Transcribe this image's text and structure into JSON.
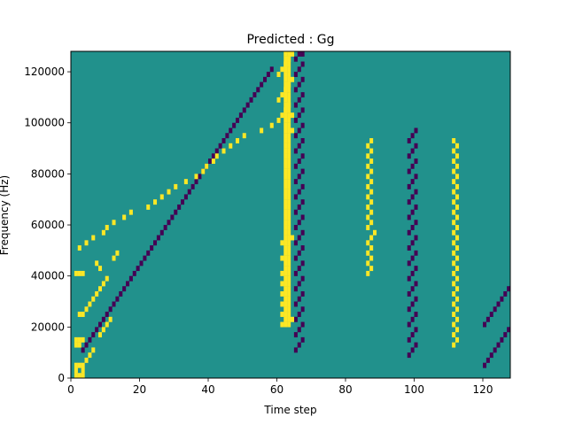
{
  "chart_data": {
    "type": "heatmap",
    "title": "Predicted : Gg",
    "xlabel": "Time step",
    "ylabel": "Frequency (Hz)",
    "xlim": [
      0,
      128
    ],
    "ylim": [
      0,
      128000
    ],
    "x_ticks": [
      0,
      20,
      40,
      60,
      80,
      100,
      120
    ],
    "x_tick_labels": [
      "0",
      "20",
      "40",
      "60",
      "80",
      "100",
      "120"
    ],
    "y_ticks": [
      0,
      20000,
      40000,
      60000,
      80000,
      100000,
      120000
    ],
    "y_tick_labels": [
      "0",
      "20000",
      "40000",
      "60000",
      "80000",
      "100000",
      "120000"
    ],
    "colormap": "viridis",
    "levels": {
      "background": "#21918c",
      "low": "#440154",
      "high": "#fde725"
    },
    "grid": false,
    "rows": 64,
    "cols": 128,
    "cells_high": [
      [
        1,
        0
      ],
      [
        2,
        0
      ],
      [
        3,
        0
      ],
      [
        1,
        1
      ],
      [
        3,
        1
      ],
      [
        1,
        2
      ],
      [
        2,
        2
      ],
      [
        3,
        2
      ],
      [
        4,
        3
      ],
      [
        5,
        4
      ],
      [
        6,
        5
      ],
      [
        1,
        6
      ],
      [
        2,
        6
      ],
      [
        1,
        7
      ],
      [
        2,
        7
      ],
      [
        3,
        7
      ],
      [
        8,
        8
      ],
      [
        9,
        9
      ],
      [
        10,
        10
      ],
      [
        11,
        11
      ],
      [
        2,
        12
      ],
      [
        3,
        12
      ],
      [
        4,
        13
      ],
      [
        5,
        14
      ],
      [
        6,
        15
      ],
      [
        7,
        16
      ],
      [
        8,
        17
      ],
      [
        9,
        18
      ],
      [
        10,
        19
      ],
      [
        1,
        20
      ],
      [
        2,
        20
      ],
      [
        3,
        20
      ],
      [
        8,
        21
      ],
      [
        7,
        22
      ],
      [
        12,
        23
      ],
      [
        13,
        24
      ],
      [
        2,
        25
      ],
      [
        4,
        26
      ],
      [
        6,
        27
      ],
      [
        9,
        28
      ],
      [
        10,
        29
      ],
      [
        12,
        30
      ],
      [
        15,
        31
      ],
      [
        17,
        32
      ],
      [
        22,
        33
      ],
      [
        24,
        34
      ],
      [
        26,
        35
      ],
      [
        28,
        36
      ],
      [
        30,
        37
      ],
      [
        33,
        38
      ],
      [
        36,
        39
      ],
      [
        38,
        40
      ],
      [
        39,
        41
      ],
      [
        41,
        42
      ],
      [
        42,
        43
      ],
      [
        44,
        44
      ],
      [
        46,
        45
      ],
      [
        48,
        46
      ],
      [
        50,
        47
      ],
      [
        55,
        48
      ],
      [
        58,
        49
      ],
      [
        60,
        50
      ],
      [
        61,
        51
      ],
      [
        62,
        52
      ],
      [
        63,
        53
      ],
      [
        60,
        54
      ],
      [
        61,
        55
      ],
      [
        62,
        56
      ],
      [
        63,
        57
      ],
      [
        64,
        58
      ],
      [
        60,
        59
      ],
      [
        61,
        60
      ],
      [
        62,
        61
      ],
      [
        63,
        62
      ],
      [
        64,
        63
      ],
      [
        61,
        10
      ],
      [
        62,
        10
      ],
      [
        63,
        10
      ],
      [
        62,
        11
      ],
      [
        63,
        11
      ],
      [
        64,
        11
      ],
      [
        61,
        12
      ],
      [
        62,
        12
      ],
      [
        63,
        12
      ],
      [
        62,
        13
      ],
      [
        63,
        13
      ],
      [
        61,
        14
      ],
      [
        62,
        14
      ],
      [
        63,
        14
      ],
      [
        62,
        15
      ],
      [
        63,
        15
      ],
      [
        61,
        16
      ],
      [
        62,
        16
      ],
      [
        63,
        16
      ],
      [
        62,
        17
      ],
      [
        63,
        17
      ],
      [
        61,
        18
      ],
      [
        62,
        18
      ],
      [
        63,
        18
      ],
      [
        62,
        19
      ],
      [
        63,
        19
      ],
      [
        61,
        20
      ],
      [
        62,
        20
      ],
      [
        63,
        20
      ],
      [
        62,
        21
      ],
      [
        63,
        21
      ],
      [
        62,
        22
      ],
      [
        63,
        22
      ],
      [
        61,
        23
      ],
      [
        62,
        23
      ],
      [
        63,
        23
      ],
      [
        62,
        24
      ],
      [
        63,
        24
      ],
      [
        62,
        25
      ],
      [
        63,
        25
      ],
      [
        61,
        26
      ],
      [
        62,
        26
      ],
      [
        63,
        26
      ],
      [
        62,
        27
      ],
      [
        63,
        27
      ],
      [
        64,
        27
      ],
      [
        62,
        28
      ],
      [
        63,
        28
      ],
      [
        62,
        29
      ],
      [
        63,
        29
      ],
      [
        62,
        30
      ],
      [
        63,
        30
      ],
      [
        62,
        31
      ],
      [
        63,
        31
      ],
      [
        62,
        32
      ],
      [
        63,
        32
      ],
      [
        62,
        33
      ],
      [
        63,
        33
      ],
      [
        62,
        34
      ],
      [
        63,
        34
      ],
      [
        62,
        35
      ],
      [
        63,
        35
      ],
      [
        62,
        36
      ],
      [
        63,
        36
      ],
      [
        62,
        37
      ],
      [
        63,
        37
      ],
      [
        62,
        38
      ],
      [
        63,
        38
      ],
      [
        62,
        39
      ],
      [
        63,
        39
      ],
      [
        62,
        40
      ],
      [
        63,
        40
      ],
      [
        62,
        41
      ],
      [
        63,
        41
      ],
      [
        62,
        42
      ],
      [
        63,
        42
      ],
      [
        62,
        43
      ],
      [
        63,
        43
      ],
      [
        62,
        44
      ],
      [
        63,
        44
      ],
      [
        62,
        45
      ],
      [
        63,
        45
      ],
      [
        62,
        46
      ],
      [
        63,
        46
      ],
      [
        62,
        47
      ],
      [
        63,
        47
      ],
      [
        62,
        48
      ],
      [
        63,
        48
      ],
      [
        64,
        48
      ],
      [
        62,
        49
      ],
      [
        63,
        49
      ],
      [
        62,
        50
      ],
      [
        63,
        50
      ],
      [
        62,
        51
      ],
      [
        63,
        51
      ],
      [
        64,
        51
      ],
      [
        62,
        52
      ],
      [
        63,
        52
      ],
      [
        62,
        53
      ],
      [
        63,
        53
      ],
      [
        62,
        54
      ],
      [
        63,
        54
      ],
      [
        62,
        55
      ],
      [
        63,
        55
      ],
      [
        62,
        56
      ],
      [
        63,
        56
      ],
      [
        62,
        57
      ],
      [
        63,
        57
      ],
      [
        62,
        58
      ],
      [
        63,
        58
      ],
      [
        62,
        59
      ],
      [
        63,
        59
      ],
      [
        62,
        60
      ],
      [
        63,
        60
      ],
      [
        62,
        61
      ],
      [
        63,
        61
      ],
      [
        62,
        62
      ],
      [
        63,
        62
      ],
      [
        62,
        63
      ],
      [
        63,
        63
      ],
      [
        86,
        20
      ],
      [
        87,
        21
      ],
      [
        86,
        22
      ],
      [
        87,
        23
      ],
      [
        86,
        24
      ],
      [
        87,
        25
      ],
      [
        86,
        26
      ],
      [
        87,
        27
      ],
      [
        88,
        28
      ],
      [
        86,
        29
      ],
      [
        87,
        30
      ],
      [
        86,
        31
      ],
      [
        87,
        32
      ],
      [
        86,
        33
      ],
      [
        87,
        34
      ],
      [
        86,
        35
      ],
      [
        87,
        36
      ],
      [
        86,
        37
      ],
      [
        87,
        38
      ],
      [
        86,
        39
      ],
      [
        87,
        40
      ],
      [
        86,
        41
      ],
      [
        87,
        42
      ],
      [
        86,
        43
      ],
      [
        87,
        44
      ],
      [
        86,
        45
      ],
      [
        87,
        46
      ],
      [
        111,
        6
      ],
      [
        112,
        7
      ],
      [
        111,
        8
      ],
      [
        112,
        9
      ],
      [
        111,
        10
      ],
      [
        112,
        11
      ],
      [
        111,
        12
      ],
      [
        112,
        13
      ],
      [
        111,
        14
      ],
      [
        112,
        15
      ],
      [
        111,
        16
      ],
      [
        112,
        17
      ],
      [
        111,
        18
      ],
      [
        112,
        19
      ],
      [
        111,
        20
      ],
      [
        112,
        21
      ],
      [
        111,
        22
      ],
      [
        112,
        23
      ],
      [
        111,
        24
      ],
      [
        112,
        25
      ],
      [
        111,
        26
      ],
      [
        112,
        27
      ],
      [
        111,
        28
      ],
      [
        112,
        29
      ],
      [
        111,
        30
      ],
      [
        112,
        31
      ],
      [
        111,
        32
      ],
      [
        112,
        33
      ],
      [
        111,
        34
      ],
      [
        112,
        35
      ],
      [
        111,
        36
      ],
      [
        112,
        37
      ],
      [
        111,
        38
      ],
      [
        112,
        39
      ],
      [
        111,
        40
      ],
      [
        112,
        41
      ],
      [
        111,
        42
      ],
      [
        112,
        43
      ],
      [
        111,
        44
      ],
      [
        112,
        45
      ],
      [
        111,
        46
      ]
    ],
    "cells_low": [
      [
        3,
        5
      ],
      [
        4,
        6
      ],
      [
        5,
        7
      ],
      [
        6,
        8
      ],
      [
        7,
        9
      ],
      [
        8,
        10
      ],
      [
        9,
        11
      ],
      [
        10,
        12
      ],
      [
        11,
        13
      ],
      [
        12,
        14
      ],
      [
        13,
        15
      ],
      [
        14,
        16
      ],
      [
        15,
        17
      ],
      [
        16,
        18
      ],
      [
        17,
        19
      ],
      [
        18,
        20
      ],
      [
        19,
        21
      ],
      [
        20,
        22
      ],
      [
        21,
        23
      ],
      [
        22,
        24
      ],
      [
        23,
        25
      ],
      [
        24,
        26
      ],
      [
        25,
        27
      ],
      [
        26,
        28
      ],
      [
        27,
        29
      ],
      [
        28,
        30
      ],
      [
        29,
        31
      ],
      [
        30,
        32
      ],
      [
        31,
        33
      ],
      [
        32,
        34
      ],
      [
        33,
        35
      ],
      [
        34,
        36
      ],
      [
        35,
        37
      ],
      [
        36,
        38
      ],
      [
        37,
        39
      ],
      [
        38,
        40
      ],
      [
        39,
        41
      ],
      [
        40,
        42
      ],
      [
        41,
        43
      ],
      [
        42,
        44
      ],
      [
        43,
        45
      ],
      [
        44,
        46
      ],
      [
        45,
        47
      ],
      [
        46,
        48
      ],
      [
        47,
        49
      ],
      [
        48,
        50
      ],
      [
        49,
        51
      ],
      [
        50,
        52
      ],
      [
        51,
        53
      ],
      [
        52,
        54
      ],
      [
        53,
        55
      ],
      [
        54,
        56
      ],
      [
        55,
        57
      ],
      [
        56,
        58
      ],
      [
        57,
        59
      ],
      [
        58,
        60
      ],
      [
        65,
        5
      ],
      [
        66,
        6
      ],
      [
        67,
        7
      ],
      [
        65,
        8
      ],
      [
        66,
        9
      ],
      [
        67,
        10
      ],
      [
        65,
        11
      ],
      [
        66,
        12
      ],
      [
        67,
        13
      ],
      [
        65,
        14
      ],
      [
        66,
        15
      ],
      [
        67,
        16
      ],
      [
        65,
        17
      ],
      [
        66,
        18
      ],
      [
        67,
        19
      ],
      [
        65,
        20
      ],
      [
        66,
        21
      ],
      [
        67,
        22
      ],
      [
        65,
        23
      ],
      [
        66,
        24
      ],
      [
        67,
        25
      ],
      [
        65,
        26
      ],
      [
        66,
        27
      ],
      [
        67,
        28
      ],
      [
        65,
        29
      ],
      [
        66,
        30
      ],
      [
        67,
        31
      ],
      [
        65,
        32
      ],
      [
        66,
        33
      ],
      [
        67,
        34
      ],
      [
        65,
        35
      ],
      [
        66,
        36
      ],
      [
        67,
        37
      ],
      [
        65,
        38
      ],
      [
        66,
        39
      ],
      [
        67,
        40
      ],
      [
        65,
        41
      ],
      [
        66,
        42
      ],
      [
        67,
        43
      ],
      [
        65,
        44
      ],
      [
        66,
        45
      ],
      [
        67,
        46
      ],
      [
        65,
        47
      ],
      [
        66,
        48
      ],
      [
        67,
        49
      ],
      [
        65,
        50
      ],
      [
        66,
        51
      ],
      [
        67,
        52
      ],
      [
        65,
        53
      ],
      [
        66,
        54
      ],
      [
        67,
        55
      ],
      [
        65,
        56
      ],
      [
        66,
        57
      ],
      [
        67,
        58
      ],
      [
        65,
        59
      ],
      [
        66,
        60
      ],
      [
        67,
        61
      ],
      [
        65,
        62
      ],
      [
        66,
        63
      ],
      [
        67,
        63
      ],
      [
        98,
        4
      ],
      [
        99,
        5
      ],
      [
        100,
        6
      ],
      [
        98,
        7
      ],
      [
        99,
        8
      ],
      [
        100,
        9
      ],
      [
        98,
        10
      ],
      [
        99,
        11
      ],
      [
        100,
        12
      ],
      [
        98,
        13
      ],
      [
        99,
        14
      ],
      [
        100,
        15
      ],
      [
        98,
        16
      ],
      [
        99,
        17
      ],
      [
        100,
        18
      ],
      [
        98,
        19
      ],
      [
        99,
        20
      ],
      [
        100,
        21
      ],
      [
        98,
        22
      ],
      [
        99,
        23
      ],
      [
        100,
        24
      ],
      [
        98,
        25
      ],
      [
        99,
        26
      ],
      [
        100,
        27
      ],
      [
        98,
        28
      ],
      [
        99,
        29
      ],
      [
        100,
        30
      ],
      [
        98,
        31
      ],
      [
        99,
        32
      ],
      [
        100,
        33
      ],
      [
        98,
        34
      ],
      [
        99,
        35
      ],
      [
        100,
        36
      ],
      [
        98,
        37
      ],
      [
        99,
        38
      ],
      [
        100,
        39
      ],
      [
        98,
        40
      ],
      [
        99,
        41
      ],
      [
        100,
        42
      ],
      [
        98,
        43
      ],
      [
        99,
        44
      ],
      [
        100,
        45
      ],
      [
        98,
        46
      ],
      [
        99,
        47
      ],
      [
        100,
        48
      ],
      [
        120,
        2
      ],
      [
        121,
        3
      ],
      [
        122,
        4
      ],
      [
        123,
        5
      ],
      [
        124,
        6
      ],
      [
        125,
        7
      ],
      [
        126,
        8
      ],
      [
        127,
        9
      ],
      [
        120,
        10
      ],
      [
        121,
        11
      ],
      [
        122,
        12
      ],
      [
        123,
        13
      ],
      [
        124,
        14
      ],
      [
        125,
        15
      ],
      [
        126,
        16
      ],
      [
        127,
        17
      ]
    ]
  }
}
